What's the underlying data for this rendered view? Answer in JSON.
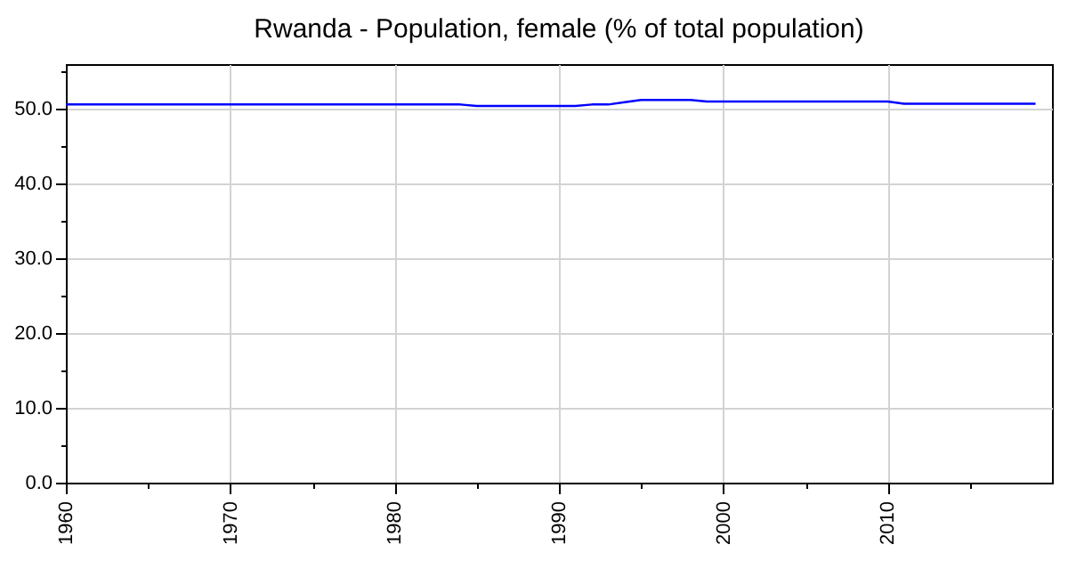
{
  "chart_data": {
    "type": "line",
    "title": "Rwanda - Population, female (% of total population)",
    "x": [
      1960,
      1961,
      1962,
      1963,
      1964,
      1965,
      1966,
      1967,
      1968,
      1969,
      1970,
      1971,
      1972,
      1973,
      1974,
      1975,
      1976,
      1977,
      1978,
      1979,
      1980,
      1981,
      1982,
      1983,
      1984,
      1985,
      1986,
      1987,
      1988,
      1989,
      1990,
      1991,
      1992,
      1993,
      1994,
      1995,
      1996,
      1997,
      1998,
      1999,
      2000,
      2001,
      2002,
      2003,
      2004,
      2005,
      2006,
      2007,
      2008,
      2009,
      2010,
      2011,
      2012,
      2013,
      2014,
      2015,
      2016,
      2017,
      2018,
      2019
    ],
    "series": [
      {
        "color": "#0000ff",
        "values": [
          50.6,
          50.6,
          50.6,
          50.6,
          50.6,
          50.6,
          50.6,
          50.6,
          50.6,
          50.6,
          50.6,
          50.6,
          50.6,
          50.6,
          50.6,
          50.6,
          50.6,
          50.6,
          50.6,
          50.6,
          50.6,
          50.6,
          50.6,
          50.6,
          50.6,
          50.4,
          50.4,
          50.4,
          50.4,
          50.4,
          50.4,
          50.4,
          50.6,
          50.6,
          50.9,
          51.2,
          51.2,
          51.2,
          51.2,
          51.0,
          51.0,
          51.0,
          51.0,
          51.0,
          51.0,
          51.0,
          51.0,
          51.0,
          51.0,
          51.0,
          51.0,
          50.7,
          50.7,
          50.7,
          50.7,
          50.7,
          50.7,
          50.7,
          50.7,
          50.7
        ]
      }
    ],
    "xlim": [
      1960,
      2020
    ],
    "xticks": [
      1960,
      {
        "value": 1965,
        "label": null
      },
      1970,
      {
        "value": 1975,
        "label": null
      },
      1980,
      {
        "value": 1985,
        "label": null
      },
      1990,
      {
        "value": 1995,
        "label": null
      },
      2000,
      {
        "value": 2005,
        "label": null
      },
      2010,
      {
        "value": 2015,
        "label": null
      }
    ],
    "ylim": [
      0,
      56
    ],
    "yticks": [
      {
        "value": 0,
        "label": "0.0"
      },
      {
        "value": 5,
        "label": null
      },
      {
        "value": 10,
        "label": "10.0"
      },
      {
        "value": 15,
        "label": null
      },
      {
        "value": 20,
        "label": "20.0"
      },
      {
        "value": 25,
        "label": null
      },
      {
        "value": 30,
        "label": "30.0"
      },
      {
        "value": 35,
        "label": null
      },
      {
        "value": 40,
        "label": "40.0"
      },
      {
        "value": 45,
        "label": null
      },
      {
        "value": 50,
        "label": "50.0"
      },
      {
        "value": 55,
        "label": null
      }
    ],
    "grid": true
  }
}
